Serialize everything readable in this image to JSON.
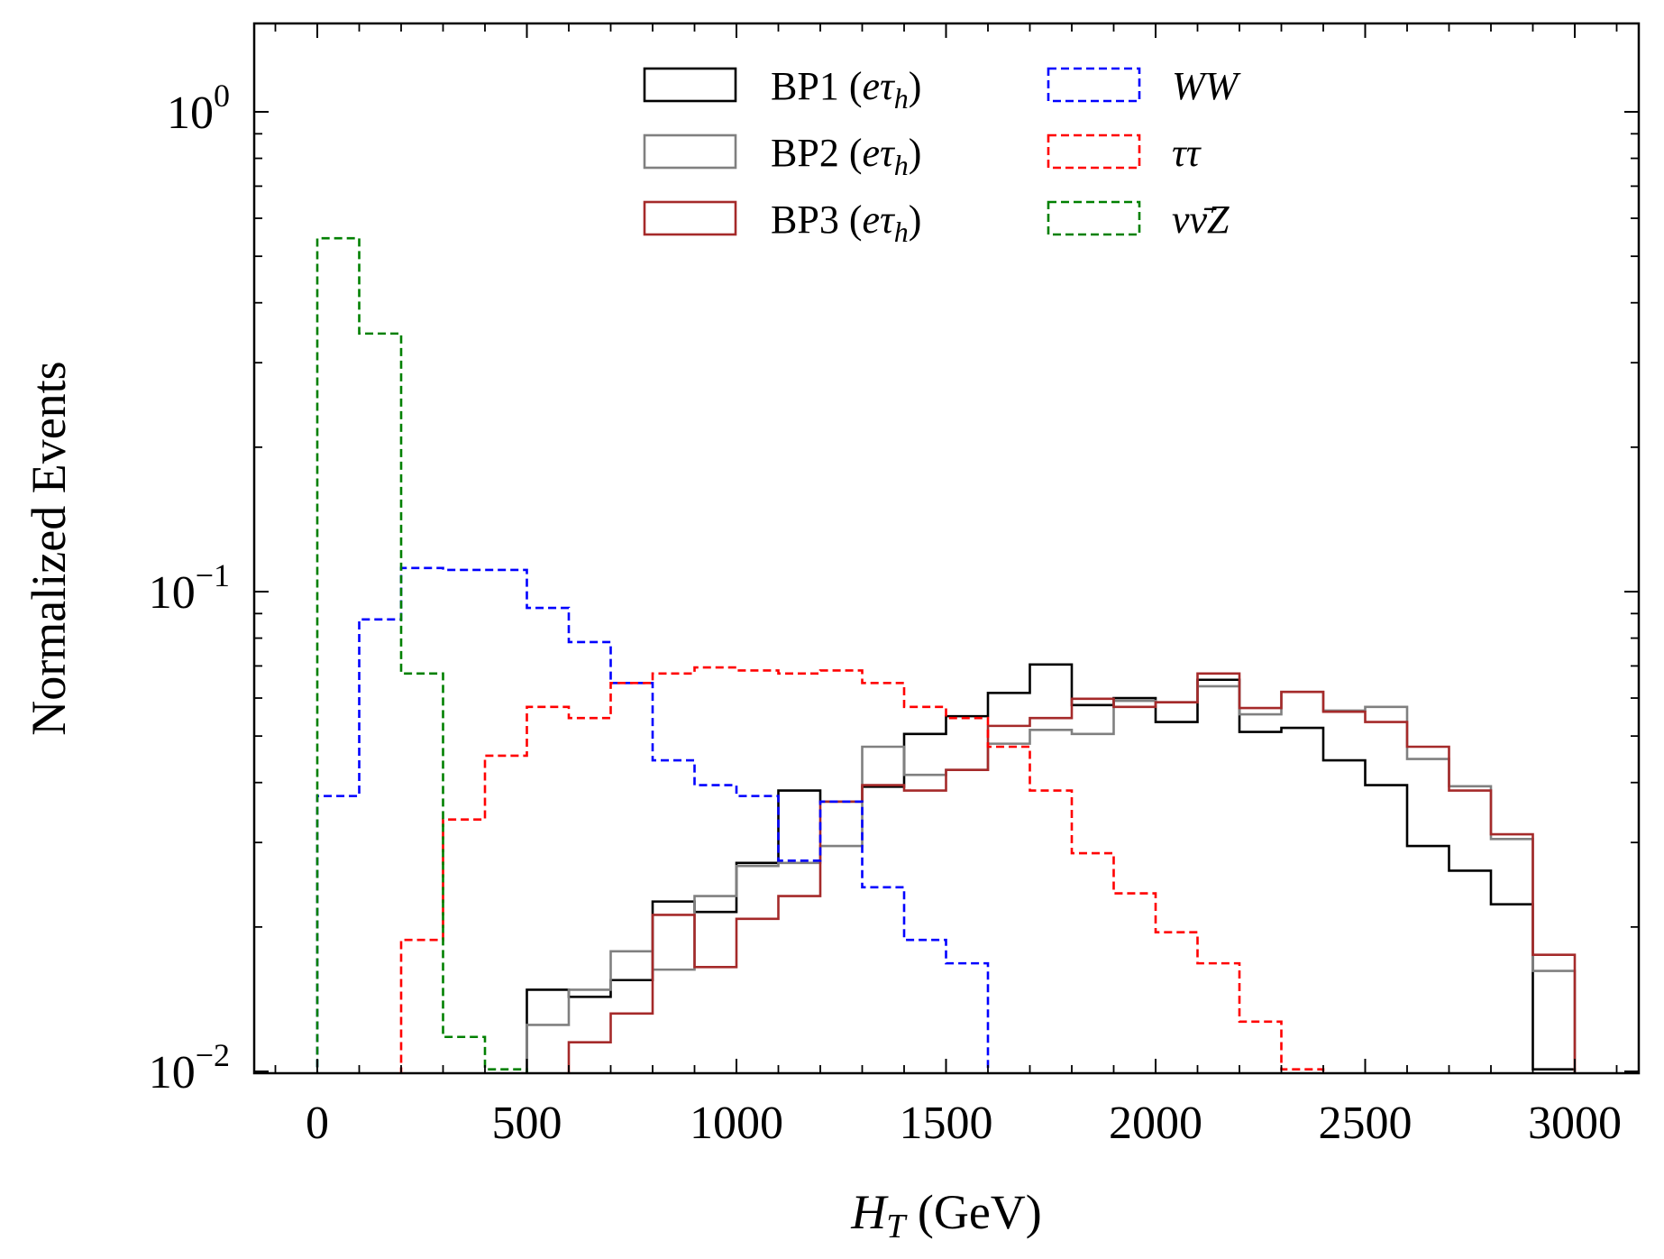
{
  "chart_data": {
    "type": "histogram-step",
    "y_scale": "log",
    "xlim": [
      -150,
      3150
    ],
    "ylim": [
      0.01,
      1.5
    ],
    "bin_edges": [
      0,
      100,
      200,
      300,
      400,
      500,
      600,
      700,
      800,
      900,
      1000,
      1100,
      1200,
      1300,
      1400,
      1500,
      1600,
      1700,
      1800,
      1900,
      2000,
      2100,
      2200,
      2300,
      2400,
      2500,
      2600,
      2700,
      2800,
      2900,
      3000
    ],
    "xlabel": "H_T (GeV)",
    "xlabel_main": "H",
    "xlabel_sub": "T",
    "xlabel_unit": " (GeV)",
    "ylabel": "Normalized Events",
    "x_ticks": [
      {
        "value": 0,
        "label": "0"
      },
      {
        "value": 500,
        "label": "500"
      },
      {
        "value": 1000,
        "label": "1000"
      },
      {
        "value": 1500,
        "label": "1500"
      },
      {
        "value": 2000,
        "label": "2000"
      },
      {
        "value": 2500,
        "label": "2500"
      },
      {
        "value": 3000,
        "label": "3000"
      }
    ],
    "y_ticks": [
      {
        "value": 1,
        "base": "10",
        "exp": "0"
      },
      {
        "value": 0.1,
        "base": "10",
        "exp": "−1"
      },
      {
        "value": 0.01,
        "base": "10",
        "exp": "−2"
      }
    ],
    "legend_position": "top",
    "series": [
      {
        "name": "BP1 (eτh)",
        "label_main": "BP1 (",
        "label_math": "eτ",
        "label_sub": "h",
        "label_close": ")",
        "color": "#000000",
        "dashed": false,
        "values": [
          null,
          null,
          null,
          null,
          null,
          0.0148,
          0.0143,
          0.0155,
          0.0226,
          0.0215,
          0.0272,
          0.0385,
          0.0365,
          0.0392,
          0.0505,
          0.055,
          0.0615,
          0.0705,
          0.058,
          0.06,
          0.0535,
          0.0655,
          0.051,
          0.052,
          0.0445,
          0.0395,
          0.0295,
          0.0262,
          0.0223,
          0.0101
        ]
      },
      {
        "name": "BP2 (eτh)",
        "label_main": "BP2 (",
        "label_math": "eτ",
        "label_sub": "h",
        "label_close": ")",
        "color": "#808080",
        "dashed": false,
        "values": [
          null,
          null,
          null,
          null,
          null,
          0.0125,
          0.0148,
          0.0178,
          0.0163,
          0.0232,
          0.0268,
          0.0272,
          0.0295,
          0.0475,
          0.0415,
          0.0425,
          0.0482,
          0.0515,
          0.0505,
          0.0592,
          0.0588,
          0.0635,
          0.0555,
          0.0618,
          0.0565,
          0.0575,
          0.0448,
          0.0393,
          0.0305,
          0.0162
        ]
      },
      {
        "name": "BP3 (eτh)",
        "label_main": "BP3 (",
        "label_math": "eτ",
        "label_sub": "h",
        "label_close": ")",
        "color": "#a52a2a",
        "dashed": false,
        "values": [
          null,
          null,
          null,
          null,
          null,
          null,
          0.0115,
          0.0132,
          0.0212,
          0.0165,
          0.0208,
          0.0232,
          0.0365,
          0.0395,
          0.0385,
          0.0425,
          0.0525,
          0.0545,
          0.0598,
          0.0575,
          0.0588,
          0.0675,
          0.0572,
          0.0618,
          0.0562,
          0.0535,
          0.0475,
          0.0385,
          0.0312,
          0.0175
        ]
      },
      {
        "name": "WW",
        "label_main": "",
        "label_math": "WW",
        "label_sub": "",
        "label_close": "",
        "color": "#0000ff",
        "dashed": true,
        "values": [
          0.0375,
          0.0875,
          0.112,
          0.111,
          0.111,
          0.0925,
          0.0785,
          0.0645,
          0.0445,
          0.0395,
          0.0375,
          0.0275,
          0.0365,
          0.0242,
          0.0188,
          0.0168,
          null,
          null,
          null,
          null,
          null,
          null,
          null,
          null,
          null,
          null,
          null,
          null,
          null,
          null
        ]
      },
      {
        "name": "ττ",
        "label_main": "",
        "label_math": "ττ",
        "label_sub": "",
        "label_close": "",
        "color": "#ff0000",
        "dashed": true,
        "values": [
          null,
          null,
          0.0188,
          0.0335,
          0.0455,
          0.0575,
          0.0545,
          0.0645,
          0.0675,
          0.0695,
          0.0685,
          0.0675,
          0.0685,
          0.0645,
          0.0575,
          0.0545,
          0.0475,
          0.0385,
          0.0285,
          0.0235,
          0.0195,
          0.0168,
          0.0127,
          0.0101,
          null,
          null,
          null,
          null,
          null,
          null
        ]
      },
      {
        "name": "νν̄Z",
        "label_main": "",
        "label_math": "νν̄Z",
        "label_sub": "",
        "label_close": "",
        "color": "#008000",
        "dashed": true,
        "values": [
          0.545,
          0.345,
          0.0675,
          0.0118,
          0.0101,
          null,
          null,
          null,
          null,
          null,
          null,
          null,
          null,
          null,
          null,
          null,
          null,
          null,
          null,
          null,
          null,
          null,
          null,
          null,
          null,
          null,
          null,
          null,
          null,
          null
        ]
      }
    ]
  }
}
